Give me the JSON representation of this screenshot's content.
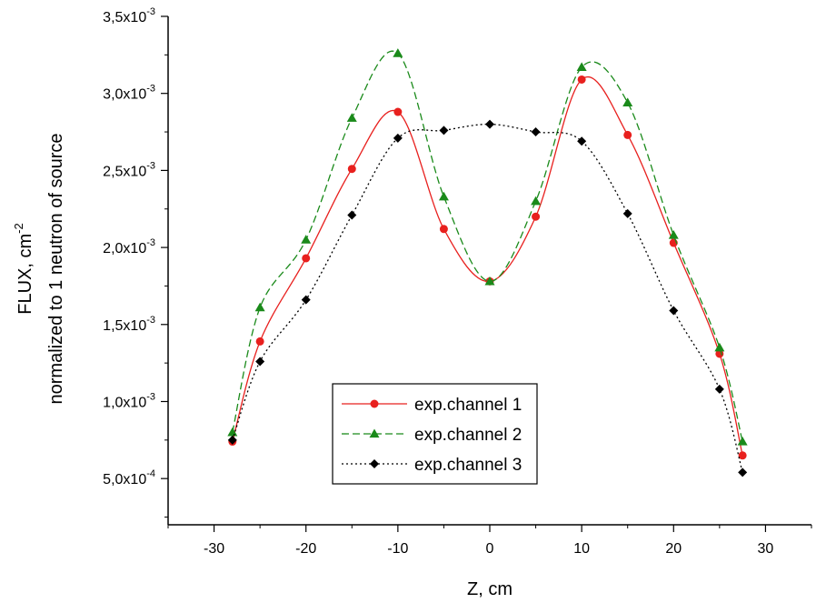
{
  "chart_data": {
    "type": "line",
    "title": "",
    "xlabel": "Z,  cm",
    "ylabel": {
      "line1_main": "FLUX,  cm",
      "line1_sup": "-2",
      "line2": "normalized to 1 neutron of source"
    },
    "xlim": [
      -35,
      35
    ],
    "ylim": [
      0.0002,
      0.0035
    ],
    "x_ticks": [
      -30,
      -20,
      -10,
      0,
      10,
      20,
      30
    ],
    "x_tick_labels": [
      "-30",
      "-20",
      "-10",
      "0",
      "10",
      "20",
      "30"
    ],
    "y_ticks": [
      0.0005,
      0.001,
      0.0015,
      0.002,
      0.0025,
      0.003,
      0.0035
    ],
    "y_tick_labels": [
      {
        "mant": "5,0x10",
        "exp": "-4"
      },
      {
        "mant": "1,0x10",
        "exp": "-3"
      },
      {
        "mant": "1,5x10",
        "exp": "-3"
      },
      {
        "mant": "2,0x10",
        "exp": "-3"
      },
      {
        "mant": "2,5x10",
        "exp": "-3"
      },
      {
        "mant": "3,0x10",
        "exp": "-3"
      },
      {
        "mant": "3,5x10",
        "exp": "-3"
      }
    ],
    "legend_position": "lower-center",
    "series": [
      {
        "name": "exp.channel 1",
        "color": "#e8201e",
        "line_style": "solid",
        "marker": "circle",
        "x": [
          -28,
          -25,
          -20,
          -15,
          -10,
          -5,
          0,
          5,
          10,
          15,
          20,
          25,
          27.5
        ],
        "y": [
          0.00074,
          0.00139,
          0.00193,
          0.00251,
          0.00288,
          0.00212,
          0.00178,
          0.0022,
          0.00309,
          0.00273,
          0.00203,
          0.00131,
          0.00065
        ]
      },
      {
        "name": "exp.channel 2",
        "color": "#1a8a1a",
        "line_style": "dashed",
        "marker": "triangle",
        "x": [
          -28,
          -25,
          -20,
          -15,
          -10,
          -5,
          0,
          5,
          10,
          15,
          20,
          25,
          27.5
        ],
        "y": [
          0.0008,
          0.00161,
          0.00205,
          0.00284,
          0.00326,
          0.00233,
          0.00178,
          0.0023,
          0.00317,
          0.00294,
          0.00208,
          0.00135,
          0.00074
        ]
      },
      {
        "name": "exp.channel 3",
        "color": "#000000",
        "line_style": "dotted",
        "marker": "diamond",
        "x": [
          -28,
          -25,
          -20,
          -15,
          -10,
          -5,
          0,
          5,
          10,
          15,
          20,
          25,
          27.5
        ],
        "y": [
          0.00075,
          0.00126,
          0.00166,
          0.00221,
          0.00271,
          0.00276,
          0.0028,
          0.00275,
          0.00269,
          0.00222,
          0.00159,
          0.00108,
          0.00054
        ]
      }
    ]
  }
}
